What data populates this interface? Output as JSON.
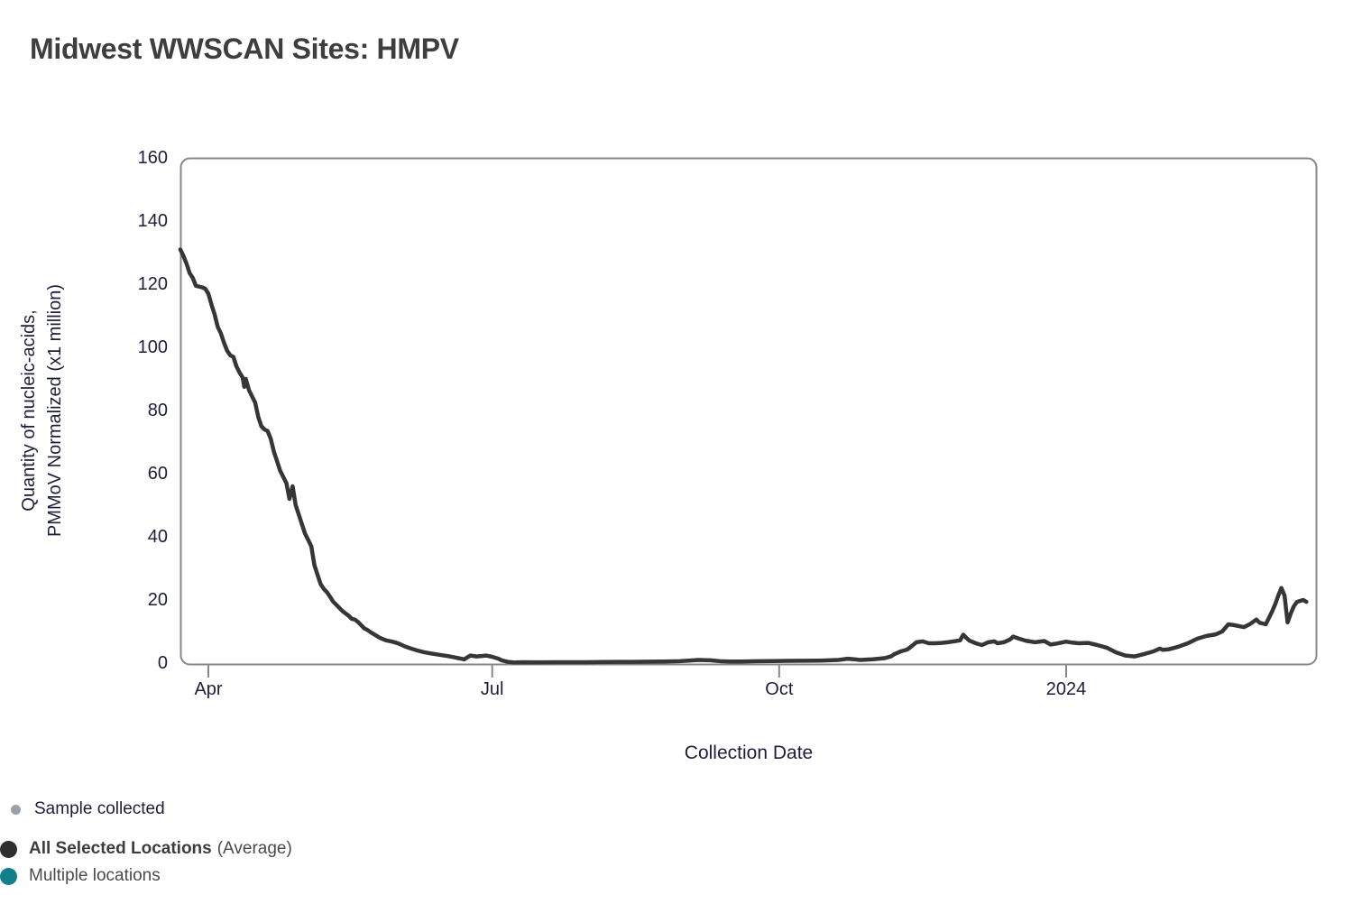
{
  "title": "Midwest WWSCAN Sites: HMPV",
  "y_axis": {
    "title_line1": "Quantity of nucleic-acids,",
    "title_line2": "PMMoV Normalized (x1 million)",
    "tick_values": [
      0,
      20,
      40,
      60,
      80,
      100,
      120,
      140,
      160
    ]
  },
  "x_axis": {
    "title": "Collection Date",
    "ticks": [
      {
        "label": "Apr",
        "day": 9
      },
      {
        "label": "Jul",
        "day": 100
      },
      {
        "label": "Oct",
        "day": 192
      },
      {
        "label": "2024",
        "day": 284
      }
    ]
  },
  "legend": {
    "sample": {
      "label": "Sample collected",
      "dot_color": "#9ba1a8"
    },
    "all_locations": {
      "label": "All Selected Locations",
      "suffix": "(Average)",
      "dot_color": "#2f2f31"
    },
    "multiple": {
      "label": "Multiple locations",
      "dot_color": "#11808c"
    }
  },
  "colors": {
    "line": "#363636",
    "frame": "#87878c",
    "tick_text": "#1e1e3c",
    "title_text": "#3e3e3e"
  },
  "chart_data": {
    "type": "line",
    "title": "Midwest WWSCAN Sites: HMPV",
    "xlabel": "Collection Date",
    "ylabel": "Quantity of nucleic-acids, PMMoV Normalized (x1 million)",
    "ylim": [
      0,
      160
    ],
    "y_ticks": [
      0,
      20,
      40,
      60,
      80,
      100,
      120,
      140,
      160
    ],
    "x_tick_labels": [
      "Apr",
      "Jul",
      "Oct",
      "2024"
    ],
    "x_units": "days from plot left edge (late Mar 2023); Apr 1 = day 9, Jul 1 = day 100, Oct 1 = day 192, Jan 1 2024 = day 284",
    "grid": false,
    "legend_position": "bottom-left",
    "series": [
      {
        "name": "All Selected Locations (Average)",
        "color": "#363636",
        "points": [
          [
            0,
            131
          ],
          [
            1,
            129
          ],
          [
            2,
            126.5
          ],
          [
            3,
            123.5
          ],
          [
            4,
            122
          ],
          [
            5,
            119.5
          ],
          [
            7,
            119
          ],
          [
            8,
            118.6
          ],
          [
            9,
            117
          ],
          [
            10,
            113.5
          ],
          [
            11,
            110.5
          ],
          [
            12,
            106.5
          ],
          [
            13,
            104.5
          ],
          [
            14,
            101.5
          ],
          [
            15,
            99
          ],
          [
            16,
            97.5
          ],
          [
            17,
            97
          ],
          [
            18,
            94
          ],
          [
            19,
            92
          ],
          [
            20,
            90.5
          ],
          [
            20.5,
            87.5
          ],
          [
            21,
            90
          ],
          [
            22,
            86.5
          ],
          [
            23,
            84.5
          ],
          [
            24,
            82.5
          ],
          [
            25,
            78
          ],
          [
            26,
            75
          ],
          [
            27,
            74
          ],
          [
            28,
            73.5
          ],
          [
            29,
            71
          ],
          [
            30,
            67
          ],
          [
            31,
            64
          ],
          [
            32,
            61
          ],
          [
            33,
            59
          ],
          [
            34,
            57
          ],
          [
            35,
            52
          ],
          [
            36,
            56
          ],
          [
            37,
            50
          ],
          [
            38,
            47
          ],
          [
            39,
            44
          ],
          [
            40,
            41
          ],
          [
            41,
            39
          ],
          [
            42,
            37
          ],
          [
            43,
            31
          ],
          [
            44,
            28
          ],
          [
            45,
            25
          ],
          [
            46,
            23.5
          ],
          [
            47,
            22.5
          ],
          [
            48,
            21
          ],
          [
            49,
            19.5
          ],
          [
            50,
            18.5
          ],
          [
            51,
            17.5
          ],
          [
            52,
            16.5
          ],
          [
            53,
            15.7
          ],
          [
            54,
            15
          ],
          [
            55,
            14
          ],
          [
            56,
            13.8
          ],
          [
            57,
            13
          ],
          [
            58,
            12
          ],
          [
            59,
            11
          ],
          [
            60,
            10.5
          ],
          [
            61,
            9.8
          ],
          [
            62,
            9.2
          ],
          [
            64,
            8
          ],
          [
            66,
            7.2
          ],
          [
            68,
            6.8
          ],
          [
            70,
            6.2
          ],
          [
            72,
            5.3
          ],
          [
            74,
            4.6
          ],
          [
            76,
            4
          ],
          [
            78,
            3.5
          ],
          [
            80,
            3.1
          ],
          [
            82,
            2.8
          ],
          [
            84,
            2.5
          ],
          [
            86,
            2.2
          ],
          [
            88,
            1.8
          ],
          [
            90,
            1.4
          ],
          [
            91,
            1.2
          ],
          [
            92,
            1.8
          ],
          [
            93,
            2.4
          ],
          [
            95,
            2.1
          ],
          [
            97,
            2.3
          ],
          [
            98,
            2.4
          ],
          [
            100,
            2
          ],
          [
            102,
            1.4
          ],
          [
            103,
            0.9
          ],
          [
            105,
            0.4
          ],
          [
            107,
            0.2
          ],
          [
            110,
            0.3
          ],
          [
            115,
            0.25
          ],
          [
            120,
            0.3
          ],
          [
            125,
            0.3
          ],
          [
            130,
            0.3
          ],
          [
            135,
            0.35
          ],
          [
            140,
            0.4
          ],
          [
            145,
            0.4
          ],
          [
            150,
            0.45
          ],
          [
            155,
            0.5
          ],
          [
            160,
            0.6
          ],
          [
            163,
            0.8
          ],
          [
            166,
            1
          ],
          [
            170,
            0.9
          ],
          [
            173,
            0.6
          ],
          [
            176,
            0.5
          ],
          [
            180,
            0.5
          ],
          [
            185,
            0.6
          ],
          [
            190,
            0.65
          ],
          [
            195,
            0.7
          ],
          [
            200,
            0.75
          ],
          [
            205,
            0.8
          ],
          [
            208,
            0.9
          ],
          [
            211,
            1
          ],
          [
            214,
            1.4
          ],
          [
            216,
            1.2
          ],
          [
            218,
            1
          ],
          [
            220,
            1.1
          ],
          [
            222,
            1.2
          ],
          [
            224,
            1.4
          ],
          [
            226,
            1.6
          ],
          [
            228,
            2.2
          ],
          [
            229,
            2.9
          ],
          [
            231,
            3.7
          ],
          [
            233,
            4.3
          ],
          [
            234,
            5
          ],
          [
            236,
            6.6
          ],
          [
            238,
            6.9
          ],
          [
            240,
            6.3
          ],
          [
            242,
            6.3
          ],
          [
            244,
            6.4
          ],
          [
            246,
            6.6
          ],
          [
            248,
            6.9
          ],
          [
            250,
            7.2
          ],
          [
            251,
            9
          ],
          [
            252,
            8
          ],
          [
            253,
            7.1
          ],
          [
            255,
            6.3
          ],
          [
            257,
            5.7
          ],
          [
            259,
            6.6
          ],
          [
            261,
            6.9
          ],
          [
            262,
            6.3
          ],
          [
            264,
            6.6
          ],
          [
            266,
            7.5
          ],
          [
            267,
            8.4
          ],
          [
            269,
            7.7
          ],
          [
            271,
            7.1
          ],
          [
            274,
            6.6
          ],
          [
            277,
            7
          ],
          [
            279,
            5.9
          ],
          [
            281,
            6.2
          ],
          [
            284,
            6.8
          ],
          [
            286,
            6.5
          ],
          [
            288,
            6.3
          ],
          [
            291,
            6.4
          ],
          [
            294,
            5.7
          ],
          [
            297,
            4.9
          ],
          [
            300,
            3.4
          ],
          [
            303,
            2.4
          ],
          [
            306,
            2.1
          ],
          [
            309,
            2.9
          ],
          [
            312,
            3.7
          ],
          [
            314,
            4.6
          ],
          [
            315,
            4.2
          ],
          [
            317,
            4.4
          ],
          [
            320,
            5.2
          ],
          [
            323,
            6.3
          ],
          [
            326,
            7.7
          ],
          [
            329,
            8.6
          ],
          [
            332,
            9.1
          ],
          [
            334,
            10
          ],
          [
            336,
            12.3
          ],
          [
            338,
            12
          ],
          [
            340,
            11.6
          ],
          [
            341,
            11.4
          ],
          [
            343,
            12.4
          ],
          [
            345,
            13.8
          ],
          [
            346,
            12.8
          ],
          [
            348,
            12.3
          ],
          [
            350,
            16.3
          ],
          [
            351,
            18.6
          ],
          [
            352,
            21.4
          ],
          [
            353,
            23.8
          ],
          [
            354,
            21.4
          ],
          [
            355,
            12.9
          ],
          [
            356,
            15.7
          ],
          [
            357,
            18
          ],
          [
            358,
            19.4
          ],
          [
            360,
            20
          ],
          [
            361,
            19.4
          ]
        ]
      }
    ]
  }
}
